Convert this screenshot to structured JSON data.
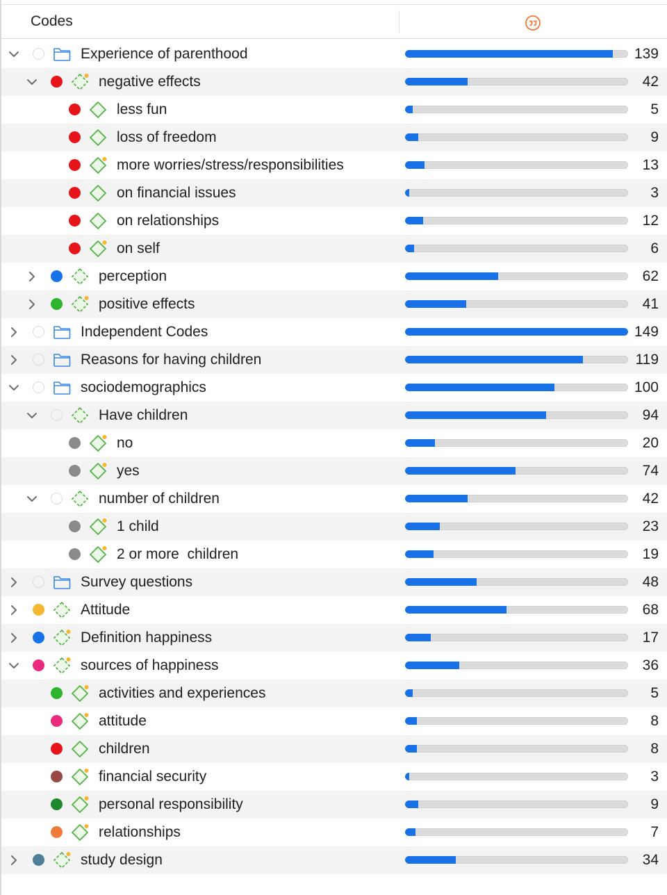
{
  "header": {
    "title": "Codes",
    "quotations_icon": "quotation-icon"
  },
  "max_count": 149,
  "rows": [
    {
      "label": "Experience of parenthood",
      "level": 0,
      "chevron": "down",
      "dot": null,
      "icon": "folder-icon",
      "count": "139",
      "value": 139
    },
    {
      "label": "negative effects",
      "level": 1,
      "chevron": "down",
      "dot": "#e8141b",
      "icon": "code-group-icon",
      "badge": true,
      "count": "42",
      "value": 42
    },
    {
      "label": "less fun",
      "level": 2,
      "chevron": null,
      "dot": "#e8141b",
      "icon": "code-icon",
      "badge": false,
      "count": "5",
      "value": 5
    },
    {
      "label": "loss of freedom",
      "level": 2,
      "chevron": null,
      "dot": "#e8141b",
      "icon": "code-icon",
      "badge": false,
      "count": "9",
      "value": 9
    },
    {
      "label": "more worries/stress/responsibilities",
      "level": 2,
      "chevron": null,
      "dot": "#e8141b",
      "icon": "code-icon",
      "badge": true,
      "count": "13",
      "value": 13
    },
    {
      "label": "on financial issues",
      "level": 2,
      "chevron": null,
      "dot": "#e8141b",
      "icon": "code-icon",
      "badge": false,
      "count": "3",
      "value": 3
    },
    {
      "label": "on relationships",
      "level": 2,
      "chevron": null,
      "dot": "#e8141b",
      "icon": "code-icon",
      "badge": false,
      "count": "12",
      "value": 12
    },
    {
      "label": "on self",
      "level": 2,
      "chevron": null,
      "dot": "#e8141b",
      "icon": "code-icon",
      "badge": true,
      "count": "6",
      "value": 6
    },
    {
      "label": "perception",
      "level": 1,
      "chevron": "right",
      "dot": "#1672e6",
      "icon": "code-group-icon",
      "badge": false,
      "count": "62",
      "value": 62
    },
    {
      "label": "positive effects",
      "level": 1,
      "chevron": "right",
      "dot": "#2db52d",
      "icon": "code-group-icon",
      "badge": true,
      "count": "41",
      "value": 41
    },
    {
      "label": "Independent Codes",
      "level": 0,
      "chevron": "right",
      "dot": null,
      "icon": "folder-icon",
      "count": "149",
      "value": 149
    },
    {
      "label": "Reasons for having children",
      "level": 0,
      "chevron": "right",
      "dot": null,
      "icon": "folder-icon",
      "count": "119",
      "value": 119
    },
    {
      "label": "sociodemographics",
      "level": 0,
      "chevron": "down",
      "dot": null,
      "icon": "folder-icon",
      "count": "100",
      "value": 100
    },
    {
      "label": "Have children",
      "level": 1,
      "chevron": "down",
      "dot": null,
      "icon": "code-group-icon",
      "badge": false,
      "count": "94",
      "value": 94
    },
    {
      "label": "no",
      "level": 2,
      "chevron": null,
      "dot": "#8a8a8a",
      "icon": "code-icon",
      "badge": true,
      "count": "20",
      "value": 20
    },
    {
      "label": "yes",
      "level": 2,
      "chevron": null,
      "dot": "#8a8a8a",
      "icon": "code-icon",
      "badge": true,
      "count": "74",
      "value": 74
    },
    {
      "label": "number of children",
      "level": 1,
      "chevron": "down",
      "dot": null,
      "icon": "code-group-icon",
      "badge": false,
      "count": "42",
      "value": 42
    },
    {
      "label": "1 child",
      "level": 2,
      "chevron": null,
      "dot": "#8a8a8a",
      "icon": "code-icon",
      "badge": true,
      "count": "23",
      "value": 23
    },
    {
      "label": "2 or more  children",
      "level": 2,
      "chevron": null,
      "dot": "#8a8a8a",
      "icon": "code-icon",
      "badge": true,
      "count": "19",
      "value": 19
    },
    {
      "label": "Survey questions",
      "level": 0,
      "chevron": "right",
      "dot": null,
      "icon": "folder-icon",
      "count": "48",
      "value": 48
    },
    {
      "label": "Attitude",
      "level": 0,
      "chevron": "right",
      "dot": "#f5b731",
      "icon": "code-group-icon",
      "badge": false,
      "count": "68",
      "value": 68
    },
    {
      "label": "Definition happiness",
      "level": 0,
      "chevron": "right",
      "dot": "#1672e6",
      "icon": "code-group-icon",
      "badge": true,
      "count": "17",
      "value": 17
    },
    {
      "label": "sources of happiness",
      "level": 0,
      "chevron": "down",
      "dot": "#ea2a7c",
      "icon": "code-group-icon",
      "badge": true,
      "count": "36",
      "value": 36
    },
    {
      "label": "activities and experiences",
      "level": 1,
      "chevron": null,
      "dot": "#2db52d",
      "icon": "code-icon",
      "badge": true,
      "count": "5",
      "value": 5
    },
    {
      "label": "attitude",
      "level": 1,
      "chevron": null,
      "dot": "#ea2a7c",
      "icon": "code-icon",
      "badge": true,
      "count": "8",
      "value": 8
    },
    {
      "label": "children",
      "level": 1,
      "chevron": null,
      "dot": "#e8141b",
      "icon": "code-icon",
      "badge": false,
      "count": "8",
      "value": 8
    },
    {
      "label": "financial security",
      "level": 1,
      "chevron": null,
      "dot": "#9a4a46",
      "icon": "code-icon",
      "badge": true,
      "count": "3",
      "value": 3
    },
    {
      "label": "personal responsibility",
      "level": 1,
      "chevron": null,
      "dot": "#1e8a2e",
      "icon": "code-icon",
      "badge": true,
      "count": "9",
      "value": 9
    },
    {
      "label": "relationships",
      "level": 1,
      "chevron": null,
      "dot": "#f07a3a",
      "icon": "code-icon",
      "badge": true,
      "count": "7",
      "value": 7
    },
    {
      "label": "study design",
      "level": 0,
      "chevron": "right",
      "dot": "#4d7f98",
      "icon": "code-group-icon",
      "badge": true,
      "count": "34",
      "value": 34
    }
  ]
}
